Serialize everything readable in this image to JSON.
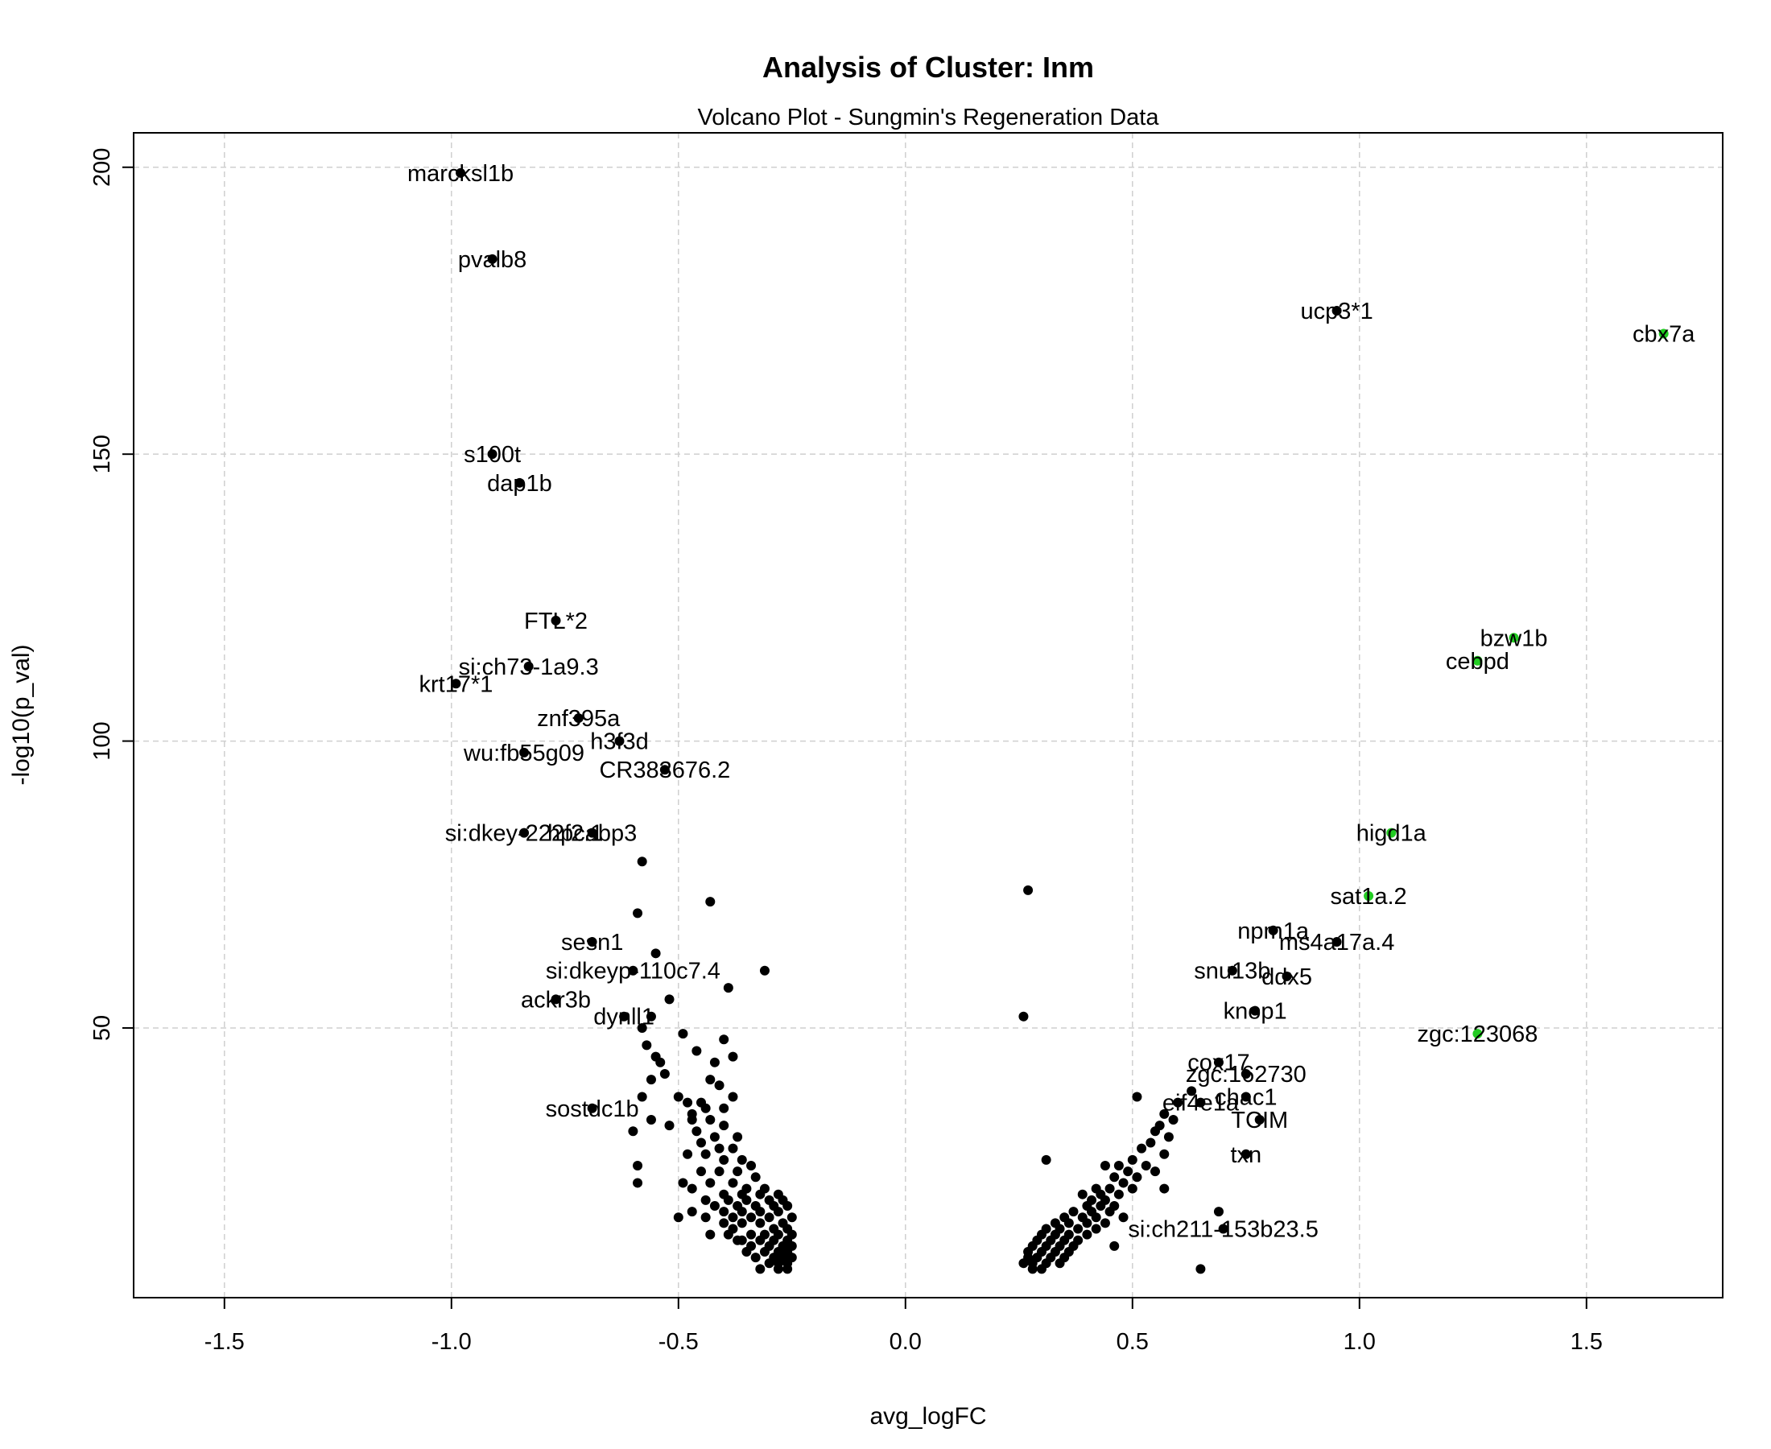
{
  "chart_data": {
    "type": "scatter",
    "title": "Analysis of Cluster: Inm",
    "subtitle": "Volcano Plot - Sungmin's Regeneration Data",
    "xlabel": "avg_logFC",
    "ylabel": "-log10(p_val)",
    "xlim": [
      -1.7,
      1.8
    ],
    "ylim": [
      3,
      206
    ],
    "x_ticks": [
      -1.5,
      -1.0,
      -0.5,
      0.0,
      0.5,
      1.0,
      1.5
    ],
    "x_tick_labels": [
      "-1.5",
      "-1.0",
      "-0.5",
      "0.0",
      "0.5",
      "1.0",
      "1.5"
    ],
    "y_ticks": [
      50,
      100,
      150,
      200
    ],
    "y_tick_labels": [
      "50",
      "100",
      "150",
      "200"
    ],
    "grid": true,
    "colors": {
      "default": "#000000",
      "highlight": "#22cc22"
    },
    "labeled_points": [
      {
        "label": "marcksl1b",
        "x": -0.98,
        "y": 199,
        "color": "default"
      },
      {
        "label": "pvalb8",
        "x": -0.91,
        "y": 184,
        "color": "default"
      },
      {
        "label": "s100t",
        "x": -0.91,
        "y": 150,
        "color": "default"
      },
      {
        "label": "dap1b",
        "x": -0.85,
        "y": 145,
        "color": "default"
      },
      {
        "label": "FTL*2",
        "x": -0.77,
        "y": 121,
        "color": "default"
      },
      {
        "label": "si:ch73-1a9.3",
        "x": -0.83,
        "y": 113,
        "color": "default"
      },
      {
        "label": "krt17*1",
        "x": -0.99,
        "y": 110,
        "color": "default"
      },
      {
        "label": "znf395a",
        "x": -0.72,
        "y": 104,
        "color": "default"
      },
      {
        "label": "h3f3d",
        "x": -0.63,
        "y": 100,
        "color": "default"
      },
      {
        "label": "wu:fb55g09",
        "x": -0.84,
        "y": 98,
        "color": "default"
      },
      {
        "label": "CR383676.2",
        "x": -0.53,
        "y": 95,
        "color": "default"
      },
      {
        "label": "si:dkey-222f2.1",
        "x": -0.84,
        "y": 84,
        "color": "default"
      },
      {
        "label": "hpcabp3",
        "x": -0.69,
        "y": 84,
        "color": "default"
      },
      {
        "label": "sesn1",
        "x": -0.69,
        "y": 65,
        "color": "default"
      },
      {
        "label": "si:dkeyp-110c7.4",
        "x": -0.6,
        "y": 60,
        "color": "default"
      },
      {
        "label": "ackr3b",
        "x": -0.77,
        "y": 55,
        "color": "default"
      },
      {
        "label": "dynll1",
        "x": -0.62,
        "y": 52,
        "color": "default"
      },
      {
        "label": "sostdc1b",
        "x": -0.69,
        "y": 36,
        "color": "default"
      },
      {
        "label": "ucp3*1",
        "x": 0.95,
        "y": 175,
        "color": "default"
      },
      {
        "label": "cbx7a",
        "x": 1.67,
        "y": 171,
        "color": "highlight"
      },
      {
        "label": "bzw1b",
        "x": 1.34,
        "y": 118,
        "color": "highlight"
      },
      {
        "label": "cebpd",
        "x": 1.26,
        "y": 114,
        "color": "highlight"
      },
      {
        "label": "higd1a",
        "x": 1.07,
        "y": 84,
        "color": "highlight"
      },
      {
        "label": "sat1a.2",
        "x": 1.02,
        "y": 73,
        "color": "highlight"
      },
      {
        "label": "npm1a",
        "x": 0.81,
        "y": 67,
        "color": "default"
      },
      {
        "label": "ms4a17a.4",
        "x": 0.95,
        "y": 65,
        "color": "default"
      },
      {
        "label": "snu13b",
        "x": 0.72,
        "y": 60,
        "color": "default"
      },
      {
        "label": "ddx5",
        "x": 0.84,
        "y": 59,
        "color": "default"
      },
      {
        "label": "knop1",
        "x": 0.77,
        "y": 53,
        "color": "default"
      },
      {
        "label": "zgc:123068",
        "x": 1.26,
        "y": 49,
        "color": "highlight"
      },
      {
        "label": "cox17",
        "x": 0.69,
        "y": 44,
        "color": "default"
      },
      {
        "label": "zgc:162730",
        "x": 0.75,
        "y": 42,
        "color": "default"
      },
      {
        "label": "chac1",
        "x": 0.75,
        "y": 38,
        "color": "default"
      },
      {
        "label": "eif4e1a",
        "x": 0.65,
        "y": 37,
        "color": "default"
      },
      {
        "label": "TCIM",
        "x": 0.78,
        "y": 34,
        "color": "default"
      },
      {
        "label": "txn",
        "x": 0.75,
        "y": 28,
        "color": "default"
      },
      {
        "label": "si:ch211-153b23.5",
        "x": 0.7,
        "y": 15,
        "color": "default"
      }
    ],
    "points": [
      [
        -0.58,
        79
      ],
      [
        -0.43,
        72
      ],
      [
        -0.59,
        70
      ],
      [
        -0.55,
        63
      ],
      [
        -0.31,
        60
      ],
      [
        -0.39,
        57
      ],
      [
        -0.52,
        55
      ],
      [
        -0.56,
        52
      ],
      [
        -0.58,
        50
      ],
      [
        -0.49,
        49
      ],
      [
        -0.4,
        48
      ],
      [
        -0.57,
        47
      ],
      [
        -0.55,
        45
      ],
      [
        -0.54,
        44
      ],
      [
        -0.46,
        46
      ],
      [
        -0.42,
        44
      ],
      [
        -0.38,
        45
      ],
      [
        -0.53,
        42
      ],
      [
        -0.56,
        41
      ],
      [
        -0.43,
        41
      ],
      [
        -0.41,
        40
      ],
      [
        -0.58,
        38
      ],
      [
        -0.5,
        38
      ],
      [
        -0.38,
        38
      ],
      [
        -0.48,
        37
      ],
      [
        -0.45,
        37
      ],
      [
        -0.47,
        35
      ],
      [
        -0.44,
        36
      ],
      [
        -0.4,
        36
      ],
      [
        -0.56,
        34
      ],
      [
        -0.52,
        33
      ],
      [
        -0.47,
        34
      ],
      [
        -0.43,
        34
      ],
      [
        -0.4,
        33
      ],
      [
        -0.6,
        32
      ],
      [
        -0.46,
        32
      ],
      [
        -0.42,
        31
      ],
      [
        -0.37,
        31
      ],
      [
        -0.45,
        30
      ],
      [
        -0.41,
        29
      ],
      [
        -0.38,
        29
      ],
      [
        -0.48,
        28
      ],
      [
        -0.44,
        28
      ],
      [
        -0.4,
        27
      ],
      [
        -0.36,
        27
      ],
      [
        -0.34,
        26
      ],
      [
        -0.59,
        26
      ],
      [
        -0.45,
        25
      ],
      [
        -0.41,
        25
      ],
      [
        -0.37,
        25
      ],
      [
        -0.33,
        24
      ],
      [
        -0.59,
        23
      ],
      [
        -0.49,
        23
      ],
      [
        -0.43,
        23
      ],
      [
        -0.38,
        23
      ],
      [
        -0.35,
        22
      ],
      [
        -0.31,
        22
      ],
      [
        -0.47,
        22
      ],
      [
        -0.4,
        21
      ],
      [
        -0.36,
        21
      ],
      [
        -0.32,
        21
      ],
      [
        -0.28,
        21
      ],
      [
        -0.44,
        20
      ],
      [
        -0.39,
        20
      ],
      [
        -0.35,
        20
      ],
      [
        -0.3,
        20
      ],
      [
        -0.27,
        20
      ],
      [
        -0.42,
        19
      ],
      [
        -0.37,
        19
      ],
      [
        -0.33,
        19
      ],
      [
        -0.29,
        19
      ],
      [
        -0.26,
        19
      ],
      [
        -0.47,
        18
      ],
      [
        -0.4,
        18
      ],
      [
        -0.36,
        18
      ],
      [
        -0.32,
        18
      ],
      [
        -0.28,
        18
      ],
      [
        -0.25,
        17
      ],
      [
        -0.5,
        17
      ],
      [
        -0.44,
        17
      ],
      [
        -0.38,
        17
      ],
      [
        -0.34,
        17
      ],
      [
        -0.3,
        17
      ],
      [
        -0.27,
        16
      ],
      [
        -0.4,
        16
      ],
      [
        -0.36,
        16
      ],
      [
        -0.32,
        16
      ],
      [
        -0.29,
        15
      ],
      [
        -0.26,
        15
      ],
      [
        -0.38,
        15
      ],
      [
        -0.34,
        14
      ],
      [
        -0.31,
        14
      ],
      [
        -0.28,
        14
      ],
      [
        -0.25,
        14
      ],
      [
        -0.43,
        14
      ],
      [
        -0.36,
        13
      ],
      [
        -0.32,
        13
      ],
      [
        -0.29,
        13
      ],
      [
        -0.26,
        13
      ],
      [
        -0.34,
        12
      ],
      [
        -0.3,
        12
      ],
      [
        -0.27,
        12
      ],
      [
        -0.25,
        12
      ],
      [
        -0.31,
        11
      ],
      [
        -0.28,
        11
      ],
      [
        -0.26,
        11
      ],
      [
        -0.29,
        10
      ],
      [
        -0.27,
        10
      ],
      [
        -0.25,
        10
      ],
      [
        -0.33,
        10
      ],
      [
        -0.28,
        9
      ],
      [
        -0.26,
        9
      ],
      [
        -0.32,
        8
      ],
      [
        -0.28,
        8
      ],
      [
        -0.26,
        8
      ],
      [
        -0.3,
        9
      ],
      [
        -0.35,
        11
      ],
      [
        -0.37,
        13
      ],
      [
        -0.39,
        14
      ],
      [
        0.27,
        74
      ],
      [
        0.26,
        52
      ],
      [
        0.51,
        38
      ],
      [
        0.6,
        37
      ],
      [
        0.63,
        39
      ],
      [
        0.57,
        35
      ],
      [
        0.59,
        34
      ],
      [
        0.56,
        33
      ],
      [
        0.55,
        32
      ],
      [
        0.58,
        31
      ],
      [
        0.54,
        30
      ],
      [
        0.52,
        29
      ],
      [
        0.57,
        28
      ],
      [
        0.5,
        27
      ],
      [
        0.31,
        27
      ],
      [
        0.44,
        26
      ],
      [
        0.47,
        26
      ],
      [
        0.53,
        26
      ],
      [
        0.49,
        25
      ],
      [
        0.55,
        25
      ],
      [
        0.46,
        24
      ],
      [
        0.51,
        24
      ],
      [
        0.48,
        23
      ],
      [
        0.42,
        22
      ],
      [
        0.45,
        22
      ],
      [
        0.5,
        22
      ],
      [
        0.57,
        22
      ],
      [
        0.39,
        21
      ],
      [
        0.43,
        21
      ],
      [
        0.47,
        21
      ],
      [
        0.41,
        20
      ],
      [
        0.44,
        20
      ],
      [
        0.4,
        19
      ],
      [
        0.43,
        19
      ],
      [
        0.46,
        19
      ],
      [
        0.37,
        18
      ],
      [
        0.41,
        18
      ],
      [
        0.45,
        18
      ],
      [
        0.35,
        17
      ],
      [
        0.39,
        17
      ],
      [
        0.42,
        17
      ],
      [
        0.48,
        17
      ],
      [
        0.33,
        16
      ],
      [
        0.36,
        16
      ],
      [
        0.4,
        16
      ],
      [
        0.44,
        16
      ],
      [
        0.31,
        15
      ],
      [
        0.34,
        15
      ],
      [
        0.38,
        15
      ],
      [
        0.42,
        15
      ],
      [
        0.3,
        14
      ],
      [
        0.33,
        14
      ],
      [
        0.36,
        14
      ],
      [
        0.4,
        14
      ],
      [
        0.29,
        13
      ],
      [
        0.32,
        13
      ],
      [
        0.35,
        13
      ],
      [
        0.38,
        13
      ],
      [
        0.28,
        12
      ],
      [
        0.31,
        12
      ],
      [
        0.34,
        12
      ],
      [
        0.37,
        12
      ],
      [
        0.46,
        12
      ],
      [
        0.27,
        11
      ],
      [
        0.3,
        11
      ],
      [
        0.33,
        11
      ],
      [
        0.36,
        11
      ],
      [
        0.27,
        10
      ],
      [
        0.29,
        10
      ],
      [
        0.32,
        10
      ],
      [
        0.35,
        10
      ],
      [
        0.28,
        9
      ],
      [
        0.31,
        9
      ],
      [
        0.34,
        9
      ],
      [
        0.26,
        9
      ],
      [
        0.3,
        8
      ],
      [
        0.28,
        8
      ],
      [
        0.65,
        8
      ],
      [
        0.69,
        18
      ]
    ]
  }
}
